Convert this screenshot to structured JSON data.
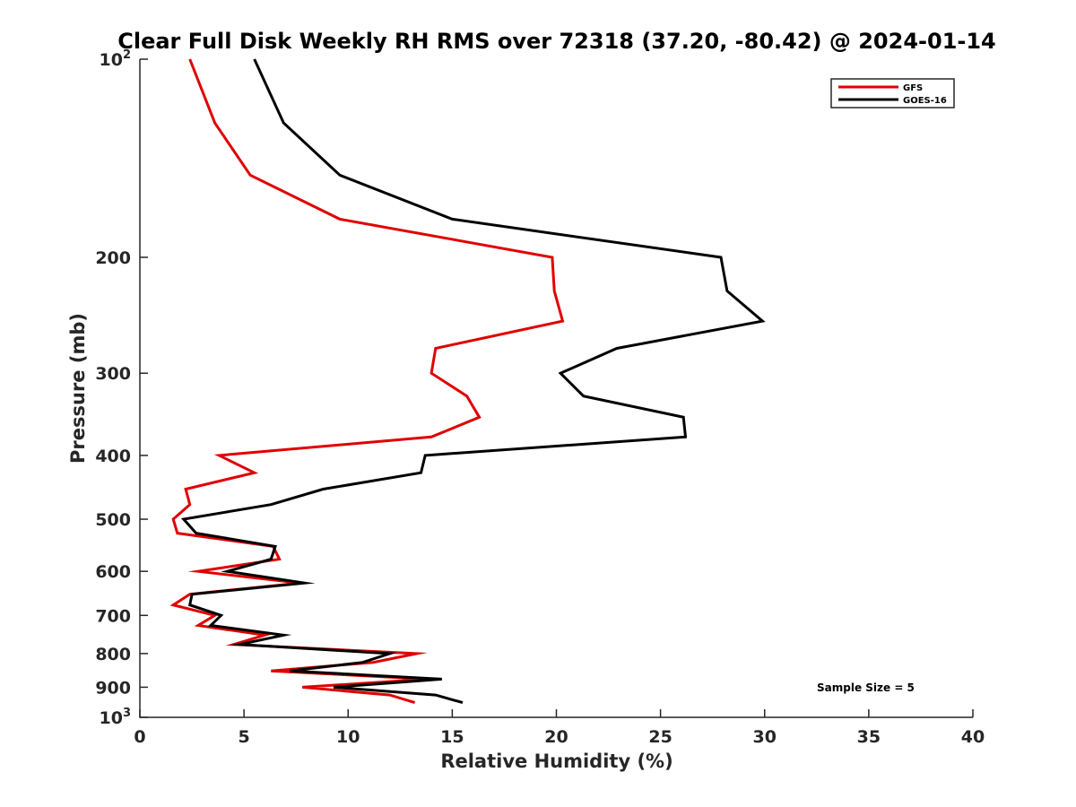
{
  "chart_data": {
    "type": "line",
    "title": "Clear Full Disk Weekly RH RMS over 72318 (37.20, -80.42) @ 2024-01-14",
    "xlabel": "Relative Humidity (%)",
    "ylabel": "Pressure (mb)",
    "xlim": [
      0,
      40
    ],
    "ylim": [
      100,
      1000
    ],
    "y_scale": "log",
    "y_reversed": true,
    "x_ticks": [
      0,
      5,
      10,
      15,
      20,
      25,
      30,
      35,
      40
    ],
    "y_ticks": [
      {
        "value": 100,
        "label": "10",
        "sup": "2"
      },
      {
        "value": 200,
        "label": "200"
      },
      {
        "value": 300,
        "label": "300"
      },
      {
        "value": 400,
        "label": "400"
      },
      {
        "value": 500,
        "label": "500"
      },
      {
        "value": 600,
        "label": "600"
      },
      {
        "value": 700,
        "label": "700"
      },
      {
        "value": 800,
        "label": "800"
      },
      {
        "value": 900,
        "label": "900"
      },
      {
        "value": 1000,
        "label": "10",
        "sup": "3"
      }
    ],
    "legend_position": "top-right",
    "annotation": "Sample Size = 5",
    "series": [
      {
        "name": "GFS",
        "color": "#e00000",
        "points": [
          {
            "p": 100,
            "rh": 2.4
          },
          {
            "p": 125,
            "rh": 3.6
          },
          {
            "p": 150,
            "rh": 5.3
          },
          {
            "p": 175,
            "rh": 9.6
          },
          {
            "p": 200,
            "rh": 19.8
          },
          {
            "p": 225,
            "rh": 19.9
          },
          {
            "p": 250,
            "rh": 20.3
          },
          {
            "p": 275,
            "rh": 14.2
          },
          {
            "p": 300,
            "rh": 14.0
          },
          {
            "p": 325,
            "rh": 15.7
          },
          {
            "p": 350,
            "rh": 16.3
          },
          {
            "p": 375,
            "rh": 14.0
          },
          {
            "p": 400,
            "rh": 3.8
          },
          {
            "p": 425,
            "rh": 5.5
          },
          {
            "p": 450,
            "rh": 2.2
          },
          {
            "p": 475,
            "rh": 2.4
          },
          {
            "p": 500,
            "rh": 1.6
          },
          {
            "p": 525,
            "rh": 1.8
          },
          {
            "p": 550,
            "rh": 6.4
          },
          {
            "p": 575,
            "rh": 6.7
          },
          {
            "p": 600,
            "rh": 2.8
          },
          {
            "p": 625,
            "rh": 7.7
          },
          {
            "p": 650,
            "rh": 2.4
          },
          {
            "p": 675,
            "rh": 1.6
          },
          {
            "p": 700,
            "rh": 3.6
          },
          {
            "p": 725,
            "rh": 2.8
          },
          {
            "p": 750,
            "rh": 6.0
          },
          {
            "p": 775,
            "rh": 4.5
          },
          {
            "p": 800,
            "rh": 13.3
          },
          {
            "p": 825,
            "rh": 11.2
          },
          {
            "p": 850,
            "rh": 6.3
          },
          {
            "p": 875,
            "rh": 13.8
          },
          {
            "p": 900,
            "rh": 7.8
          },
          {
            "p": 925,
            "rh": 12.0
          },
          {
            "p": 950,
            "rh": 13.2
          }
        ]
      },
      {
        "name": "GOES-16",
        "color": "#000000",
        "points": [
          {
            "p": 100,
            "rh": 5.5
          },
          {
            "p": 125,
            "rh": 6.9
          },
          {
            "p": 150,
            "rh": 9.6
          },
          {
            "p": 175,
            "rh": 15.0
          },
          {
            "p": 200,
            "rh": 27.9
          },
          {
            "p": 225,
            "rh": 28.2
          },
          {
            "p": 250,
            "rh": 29.9
          },
          {
            "p": 275,
            "rh": 22.9
          },
          {
            "p": 300,
            "rh": 20.2
          },
          {
            "p": 325,
            "rh": 21.3
          },
          {
            "p": 350,
            "rh": 26.1
          },
          {
            "p": 375,
            "rh": 26.2
          },
          {
            "p": 400,
            "rh": 13.7
          },
          {
            "p": 425,
            "rh": 13.5
          },
          {
            "p": 450,
            "rh": 8.8
          },
          {
            "p": 475,
            "rh": 6.3
          },
          {
            "p": 500,
            "rh": 2.1
          },
          {
            "p": 525,
            "rh": 2.7
          },
          {
            "p": 550,
            "rh": 6.5
          },
          {
            "p": 575,
            "rh": 6.3
          },
          {
            "p": 600,
            "rh": 4.2
          },
          {
            "p": 625,
            "rh": 7.9
          },
          {
            "p": 650,
            "rh": 2.5
          },
          {
            "p": 675,
            "rh": 2.4
          },
          {
            "p": 700,
            "rh": 3.9
          },
          {
            "p": 725,
            "rh": 3.4
          },
          {
            "p": 750,
            "rh": 6.9
          },
          {
            "p": 775,
            "rh": 4.8
          },
          {
            "p": 800,
            "rh": 12.0
          },
          {
            "p": 825,
            "rh": 10.7
          },
          {
            "p": 850,
            "rh": 7.2
          },
          {
            "p": 875,
            "rh": 14.5
          },
          {
            "p": 900,
            "rh": 9.3
          },
          {
            "p": 925,
            "rh": 14.2
          },
          {
            "p": 950,
            "rh": 15.5
          }
        ]
      }
    ]
  }
}
